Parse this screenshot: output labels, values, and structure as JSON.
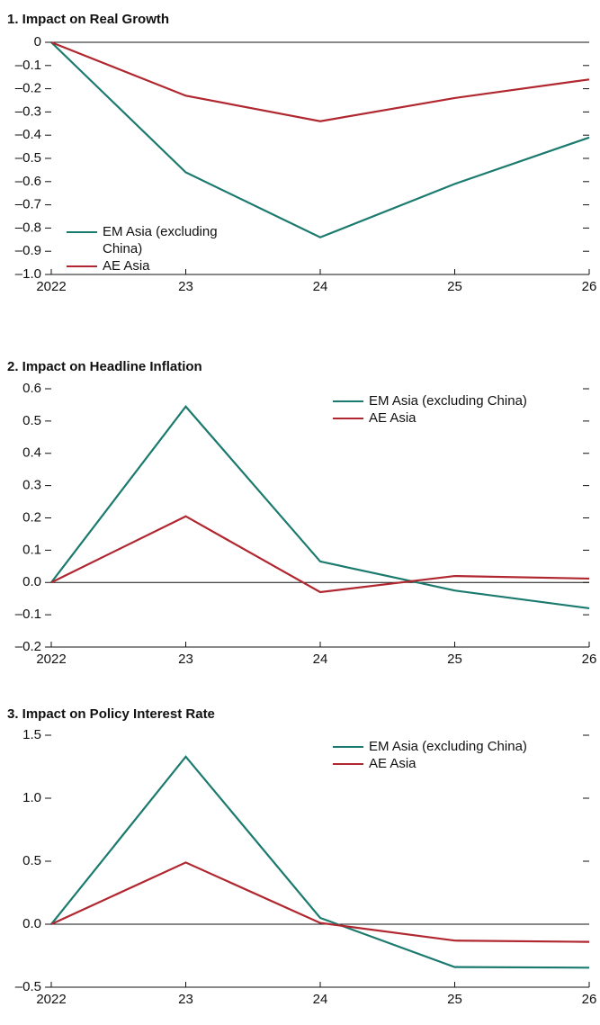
{
  "chart_data": [
    {
      "type": "line",
      "title": "1. Impact on Real Growth",
      "categories": [
        "2022",
        "23",
        "24",
        "25",
        "26"
      ],
      "series": [
        {
          "name": "EM Asia (excluding China)",
          "color": "#1b7a6e",
          "values": [
            0,
            -0.56,
            -0.84,
            -0.61,
            -0.41
          ]
        },
        {
          "name": "AE Asia",
          "color": "#b0272f",
          "values": [
            0,
            -0.23,
            -0.34,
            -0.24,
            -0.16
          ]
        }
      ],
      "ylim": [
        -1.0,
        0
      ],
      "yticks": [
        0,
        {
          "value": -0.1,
          "label": "–0.1"
        },
        {
          "value": -0.2,
          "label": "–0.2"
        },
        {
          "value": -0.3,
          "label": "–0.3"
        },
        {
          "value": -0.4,
          "label": "–0.4"
        },
        {
          "value": -0.5,
          "label": "–0.5"
        },
        {
          "value": -0.6,
          "label": "–0.6"
        },
        {
          "value": -0.7,
          "label": "–0.7"
        },
        {
          "value": -0.8,
          "label": "–0.8"
        },
        {
          "value": -0.9,
          "label": "–0.9"
        },
        {
          "value": -1.0,
          "label": "–1.0"
        }
      ]
    },
    {
      "type": "line",
      "title": "2. Impact on Headline Inflation",
      "categories": [
        "2022",
        "23",
        "24",
        "25",
        "26"
      ],
      "series": [
        {
          "name": "EM Asia (excluding China)",
          "color": "#1b7a6e",
          "values": [
            0,
            0.545,
            0.065,
            -0.025,
            -0.08
          ]
        },
        {
          "name": "AE Asia",
          "color": "#b0272f",
          "values": [
            0,
            0.205,
            -0.03,
            0.02,
            0.012
          ]
        }
      ],
      "ylim": [
        -0.2,
        0.6
      ],
      "yticks": [
        0.6,
        0.5,
        0.4,
        0.3,
        0.2,
        0.1,
        {
          "value": 0,
          "label": "0.0"
        },
        {
          "value": -0.1,
          "label": "–0.1"
        },
        {
          "value": -0.2,
          "label": "–0.2"
        }
      ]
    },
    {
      "type": "line",
      "title": "3. Impact on Policy Interest Rate",
      "categories": [
        "2022",
        "23",
        "24",
        "25",
        "26"
      ],
      "series": [
        {
          "name": "EM Asia (excluding China)",
          "color": "#1b7a6e",
          "values": [
            0,
            1.33,
            0.05,
            -0.34,
            -0.345
          ]
        },
        {
          "name": "AE Asia",
          "color": "#b0272f",
          "values": [
            0,
            0.49,
            0.01,
            -0.13,
            -0.14
          ]
        }
      ],
      "ylim": [
        -0.5,
        1.5
      ],
      "yticks": [
        1.5,
        {
          "value": 1,
          "label": "1.0"
        },
        0.5,
        {
          "value": 0,
          "label": "0.0"
        },
        {
          "value": -0.5,
          "label": "–0.5"
        }
      ]
    }
  ]
}
